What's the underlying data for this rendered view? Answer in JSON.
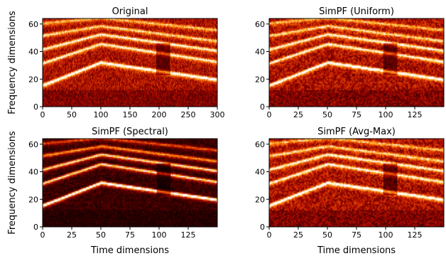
{
  "colormap": [
    "#000000",
    "#3a0000",
    "#8b0000",
    "#c81e00",
    "#f05a00",
    "#ff9a1a",
    "#ffd75a",
    "#ffffff"
  ],
  "chart_data": [
    {
      "type": "heatmap",
      "title": "Original",
      "xlabel": "",
      "ylabel": "Frequency dimensions",
      "xlim": [
        0,
        300
      ],
      "ylim": [
        0,
        64
      ],
      "xticks": [
        0,
        50,
        100,
        150,
        200,
        250,
        300
      ],
      "yticks": [
        0,
        20,
        40,
        60
      ],
      "time_frames": 300,
      "frequency_bins": 64,
      "harmonics": [
        {
          "t": [
            0,
            100,
            300
          ],
          "f": [
            15,
            31.5,
            19
          ],
          "intensity": 1.0
        },
        {
          "t": [
            0,
            100,
            300
          ],
          "f": [
            31,
            45,
            32
          ],
          "intensity": 0.75
        },
        {
          "t": [
            0,
            100,
            300
          ],
          "f": [
            41,
            52,
            40
          ],
          "intensity": 0.75
        },
        {
          "t": [
            0,
            100,
            300
          ],
          "f": [
            51,
            58,
            47
          ],
          "intensity": 0.6
        },
        {
          "t": [
            0,
            100,
            300
          ],
          "f": [
            60,
            64,
            55
          ],
          "intensity": 0.5
        }
      ],
      "background": 0.38,
      "contrast": 1.0
    },
    {
      "type": "heatmap",
      "title": "SimPF (Uniform)",
      "xlabel": "",
      "ylabel": "",
      "xlim": [
        0,
        150
      ],
      "ylim": [
        0,
        64
      ],
      "xticks": [
        0,
        25,
        50,
        75,
        100,
        125
      ],
      "yticks": [
        0,
        20,
        40,
        60
      ],
      "time_frames": 150,
      "frequency_bins": 64,
      "harmonics": [
        {
          "t": [
            0,
            50,
            150
          ],
          "f": [
            15,
            31.5,
            19
          ],
          "intensity": 1.0
        },
        {
          "t": [
            0,
            50,
            150
          ],
          "f": [
            31,
            45,
            32
          ],
          "intensity": 0.75
        },
        {
          "t": [
            0,
            50,
            150
          ],
          "f": [
            41,
            52,
            40
          ],
          "intensity": 0.75
        },
        {
          "t": [
            0,
            50,
            150
          ],
          "f": [
            51,
            58,
            47
          ],
          "intensity": 0.6
        },
        {
          "t": [
            0,
            50,
            150
          ],
          "f": [
            60,
            64,
            55
          ],
          "intensity": 0.5
        }
      ],
      "background": 0.38,
      "contrast": 1.0
    },
    {
      "type": "heatmap",
      "title": "SimPF (Spectral)",
      "xlabel": "Time dimensions",
      "ylabel": "Frequency dimensions",
      "xlim": [
        0,
        150
      ],
      "ylim": [
        0,
        64
      ],
      "xticks": [
        0,
        25,
        50,
        75,
        100,
        125
      ],
      "yticks": [
        0,
        20,
        40,
        60
      ],
      "time_frames": 150,
      "frequency_bins": 64,
      "harmonics": [
        {
          "t": [
            0,
            50,
            150
          ],
          "f": [
            15,
            31.5,
            19
          ],
          "intensity": 1.15
        },
        {
          "t": [
            0,
            50,
            150
          ],
          "f": [
            31,
            45,
            32
          ],
          "intensity": 0.8
        },
        {
          "t": [
            0,
            50,
            150
          ],
          "f": [
            41,
            52,
            40
          ],
          "intensity": 0.8
        },
        {
          "t": [
            0,
            50,
            150
          ],
          "f": [
            51,
            58,
            47
          ],
          "intensity": 0.6
        },
        {
          "t": [
            0,
            50,
            150
          ],
          "f": [
            60,
            64,
            55
          ],
          "intensity": 0.45
        }
      ],
      "background": 0.22,
      "contrast": 1.3
    },
    {
      "type": "heatmap",
      "title": "SimPF (Avg-Max)",
      "xlabel": "Time dimensions",
      "ylabel": "",
      "xlim": [
        0,
        150
      ],
      "ylim": [
        0,
        64
      ],
      "xticks": [
        0,
        25,
        50,
        75,
        100,
        125
      ],
      "yticks": [
        0,
        20,
        40,
        60
      ],
      "time_frames": 150,
      "frequency_bins": 64,
      "harmonics": [
        {
          "t": [
            0,
            50,
            150
          ],
          "f": [
            15,
            31.5,
            19
          ],
          "intensity": 1.0
        },
        {
          "t": [
            0,
            50,
            150
          ],
          "f": [
            31,
            45,
            32
          ],
          "intensity": 0.75
        },
        {
          "t": [
            0,
            50,
            150
          ],
          "f": [
            41,
            52,
            40
          ],
          "intensity": 0.75
        },
        {
          "t": [
            0,
            50,
            150
          ],
          "f": [
            51,
            58,
            47
          ],
          "intensity": 0.6
        },
        {
          "t": [
            0,
            50,
            150
          ],
          "f": [
            60,
            64,
            55
          ],
          "intensity": 0.5
        }
      ],
      "background": 0.38,
      "contrast": 1.0
    }
  ]
}
